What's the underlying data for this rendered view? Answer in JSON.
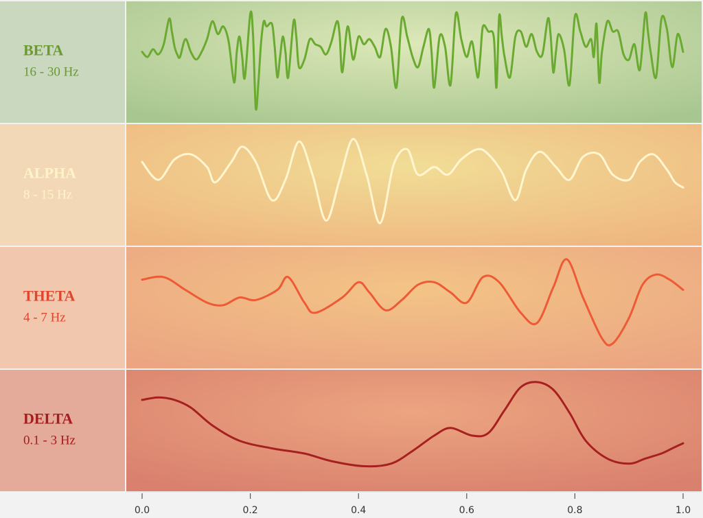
{
  "chart_data": {
    "type": "line",
    "x_axis": {
      "ticks": [
        0.0,
        0.2,
        0.4,
        0.6,
        0.8,
        1.0
      ],
      "tick_labels": [
        "0.0",
        "0.2",
        "0.4",
        "0.6",
        "0.8",
        "1.0"
      ],
      "range": [
        0.0,
        1.0
      ]
    },
    "y_axis": {
      "range": [
        -1,
        1
      ],
      "ticks_shown": false
    },
    "grid": false,
    "legend": "none",
    "panels": [
      {
        "name": "BETA",
        "range": "16 - 30 Hz",
        "text_color": "#6a9a30",
        "line_color": "#6aaa30",
        "panel_center": "#dde8b8",
        "panel_edge": "#a8c690",
        "label_bg": "#cad8c0",
        "x": [
          0.0,
          0.01,
          0.02,
          0.03,
          0.04,
          0.05,
          0.055,
          0.06,
          0.065,
          0.07,
          0.08,
          0.09,
          0.1,
          0.11,
          0.12,
          0.13,
          0.14,
          0.15,
          0.16,
          0.17,
          0.175,
          0.18,
          0.185,
          0.19,
          0.2,
          0.205,
          0.21,
          0.215,
          0.22,
          0.225,
          0.23,
          0.24,
          0.245,
          0.25,
          0.255,
          0.26,
          0.265,
          0.27,
          0.28,
          0.285,
          0.29,
          0.3,
          0.31,
          0.32,
          0.33,
          0.34,
          0.35,
          0.36,
          0.365,
          0.37,
          0.38,
          0.39,
          0.4,
          0.41,
          0.42,
          0.43,
          0.44,
          0.45,
          0.46,
          0.47,
          0.48,
          0.49,
          0.5,
          0.51,
          0.52,
          0.53,
          0.535,
          0.54,
          0.55,
          0.56,
          0.57,
          0.58,
          0.59,
          0.6,
          0.61,
          0.62,
          0.625,
          0.63,
          0.64,
          0.65,
          0.655,
          0.66,
          0.665,
          0.67,
          0.68,
          0.69,
          0.7,
          0.71,
          0.72,
          0.73,
          0.74,
          0.75,
          0.755,
          0.76,
          0.765,
          0.77,
          0.78,
          0.79,
          0.8,
          0.81,
          0.82,
          0.83,
          0.835,
          0.84,
          0.845,
          0.85,
          0.86,
          0.87,
          0.88,
          0.89,
          0.9,
          0.91,
          0.92,
          0.93,
          0.935,
          0.94,
          0.95,
          0.96,
          0.97,
          0.98,
          0.99,
          1.0
        ],
        "values": [
          0.2,
          0.1,
          0.25,
          0.15,
          0.35,
          0.85,
          0.6,
          0.3,
          0.15,
          0.1,
          0.45,
          0.2,
          0.05,
          0.2,
          0.45,
          0.8,
          0.55,
          0.7,
          0.4,
          -0.4,
          0.2,
          0.5,
          0.1,
          -0.3,
          0.95,
          0.55,
          -0.9,
          -0.4,
          0.4,
          0.8,
          0.7,
          0.75,
          0.3,
          -0.3,
          0.1,
          0.5,
          0.2,
          -0.3,
          0.8,
          0.5,
          -0.1,
          0.05,
          0.45,
          0.35,
          0.3,
          0.15,
          0.4,
          0.8,
          0.55,
          -0.2,
          0.7,
          0.05,
          0.5,
          0.35,
          0.45,
          0.3,
          0.1,
          0.65,
          0.3,
          -0.5,
          0.85,
          0.5,
          0.1,
          -0.1,
          0.3,
          0.65,
          0.2,
          -0.5,
          0.5,
          0.3,
          -0.45,
          0.95,
          0.45,
          0.1,
          0.4,
          -0.3,
          0.1,
          0.7,
          0.6,
          0.5,
          -0.5,
          0.9,
          0.5,
          0.1,
          -0.3,
          0.5,
          0.6,
          0.3,
          0.55,
          0.2,
          0.15,
          0.85,
          0.55,
          -0.2,
          0.2,
          0.55,
          0.25,
          -0.45,
          0.9,
          0.6,
          0.3,
          0.45,
          0.1,
          0.75,
          -0.4,
          0.2,
          0.8,
          0.6,
          0.6,
          0.15,
          0.05,
          0.35,
          -0.15,
          0.95,
          0.6,
          0.2,
          -0.3,
          0.85,
          0.65,
          -0.1,
          0.55,
          0.2
        ]
      },
      {
        "name": "ALPHA",
        "range": "8 - 15 Hz",
        "text_color": "#fff4c8",
        "line_color": "#fff6d0",
        "panel_center": "#f1dd96",
        "panel_edge": "#efb680",
        "label_bg": "#f3d8b8",
        "x": [
          0.0,
          0.03,
          0.06,
          0.09,
          0.12,
          0.135,
          0.165,
          0.185,
          0.21,
          0.24,
          0.265,
          0.29,
          0.315,
          0.34,
          0.365,
          0.39,
          0.415,
          0.44,
          0.465,
          0.49,
          0.51,
          0.54,
          0.565,
          0.59,
          0.62,
          0.64,
          0.665,
          0.69,
          0.71,
          0.735,
          0.765,
          0.79,
          0.815,
          0.845,
          0.87,
          0.9,
          0.92,
          0.945,
          0.97,
          0.985,
          1.0
        ],
        "values": [
          0.45,
          0.1,
          0.5,
          0.6,
          0.35,
          0.05,
          0.45,
          0.75,
          0.45,
          -0.3,
          0.1,
          0.85,
          0.2,
          -0.7,
          0.1,
          0.9,
          0.2,
          -0.75,
          0.4,
          0.7,
          0.2,
          0.35,
          0.2,
          0.5,
          0.7,
          0.6,
          0.25,
          -0.3,
          0.3,
          0.65,
          0.35,
          0.1,
          0.55,
          0.6,
          0.2,
          0.1,
          0.45,
          0.6,
          0.3,
          0.05,
          -0.05
        ]
      },
      {
        "name": "THETA",
        "range": "4 - 7 Hz",
        "text_color": "#e0452e",
        "line_color": "#ee5a35",
        "panel_center": "#f3c486",
        "panel_edge": "#eba582",
        "label_bg": "#f1c7ad",
        "x": [
          0.0,
          0.04,
          0.08,
          0.12,
          0.15,
          0.18,
          0.21,
          0.25,
          0.27,
          0.3,
          0.32,
          0.37,
          0.4,
          0.42,
          0.45,
          0.48,
          0.51,
          0.54,
          0.57,
          0.6,
          0.63,
          0.66,
          0.7,
          0.73,
          0.76,
          0.785,
          0.815,
          0.85,
          0.87,
          0.9,
          0.925,
          0.95,
          0.975,
          1.0
        ],
        "values": [
          0.55,
          0.6,
          0.35,
          0.1,
          0.05,
          0.2,
          0.15,
          0.35,
          0.6,
          0.1,
          -0.1,
          0.2,
          0.5,
          0.3,
          -0.05,
          0.15,
          0.45,
          0.5,
          0.3,
          0.1,
          0.6,
          0.5,
          -0.1,
          -0.3,
          0.4,
          0.95,
          0.2,
          -0.6,
          -0.7,
          -0.2,
          0.45,
          0.65,
          0.55,
          0.35
        ]
      },
      {
        "name": "DELTA",
        "range": "0.1 - 3 Hz",
        "text_color": "#a61c1c",
        "line_color": "#a62020",
        "panel_center": "#eca580",
        "panel_edge": "#d9806e",
        "label_bg": "#e4aa9a",
        "x": [
          0.0,
          0.03,
          0.06,
          0.09,
          0.13,
          0.18,
          0.24,
          0.3,
          0.35,
          0.41,
          0.46,
          0.5,
          0.54,
          0.57,
          0.61,
          0.64,
          0.67,
          0.7,
          0.73,
          0.76,
          0.79,
          0.82,
          0.86,
          0.9,
          0.93,
          0.96,
          0.98,
          1.0
        ],
        "values": [
          0.6,
          0.65,
          0.6,
          0.45,
          0.1,
          -0.2,
          -0.35,
          -0.45,
          -0.6,
          -0.7,
          -0.65,
          -0.4,
          -0.1,
          0.05,
          -0.1,
          -0.05,
          0.4,
          0.85,
          0.95,
          0.8,
          0.35,
          -0.2,
          -0.55,
          -0.65,
          -0.55,
          -0.45,
          -0.35,
          -0.25
        ]
      }
    ]
  }
}
